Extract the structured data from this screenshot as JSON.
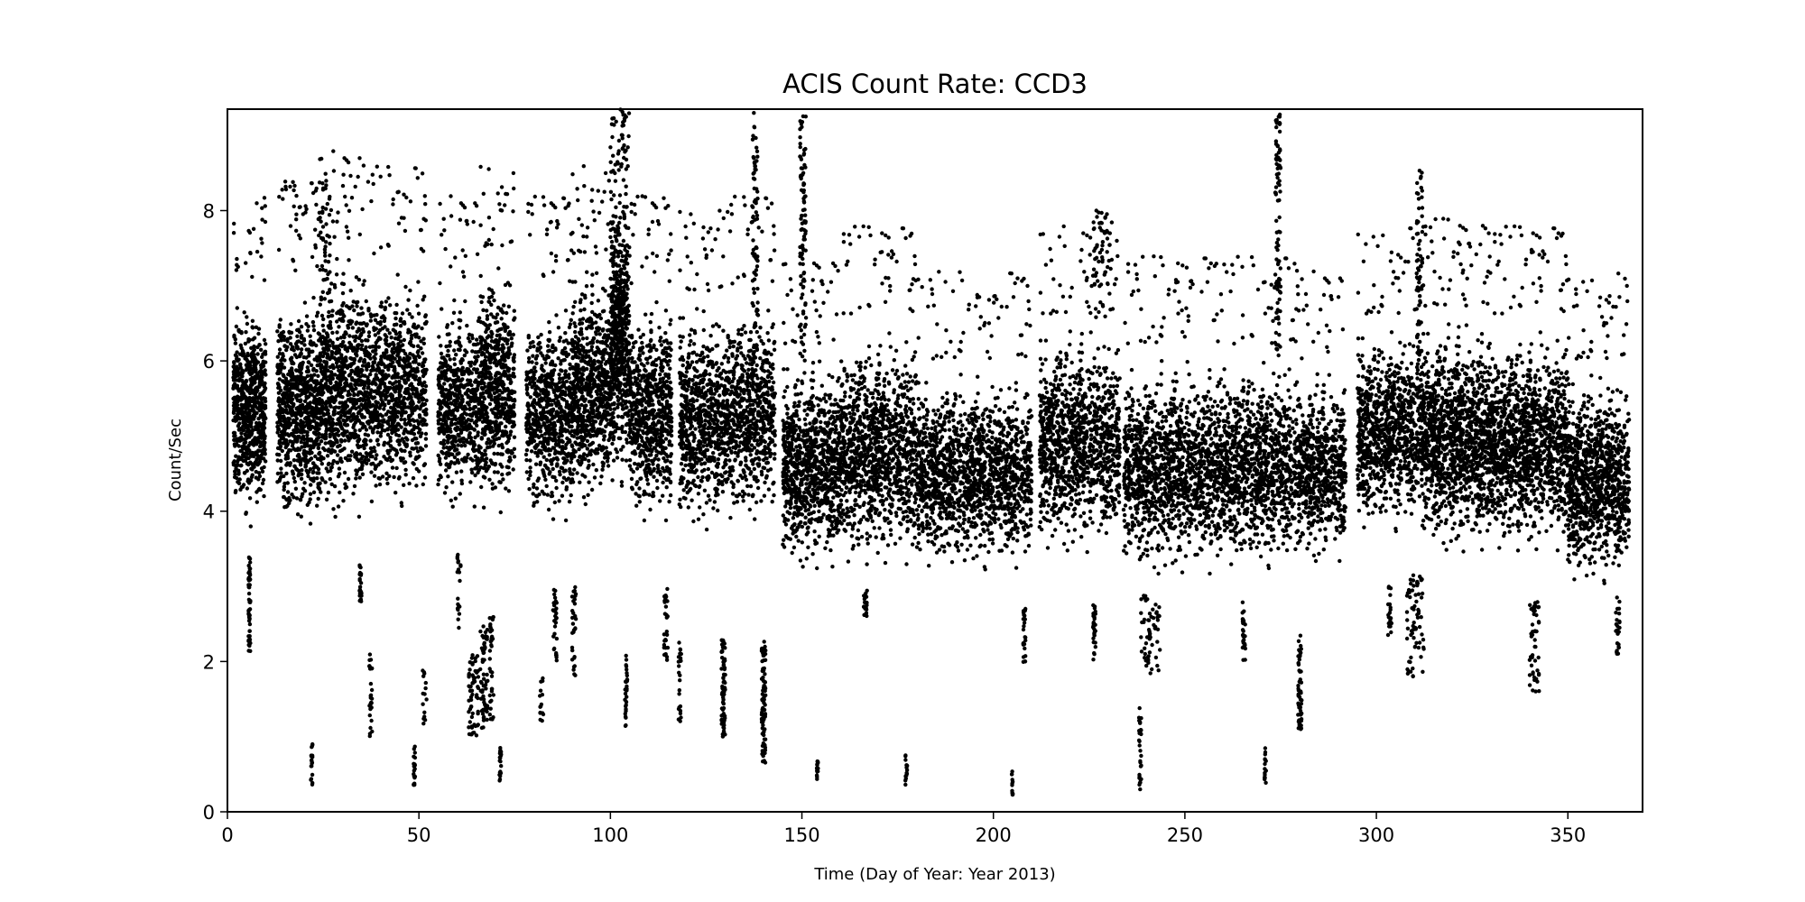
{
  "chart_data": {
    "type": "scatter",
    "title": "ACIS Count Rate: CCD3",
    "xlabel": "Time (Day of Year: Year 2013)",
    "ylabel": "Count/Sec",
    "xlim": [
      0,
      369.5
    ],
    "ylim": [
      0,
      9.35
    ],
    "xticks": [
      0,
      50,
      100,
      150,
      200,
      250,
      300,
      350
    ],
    "yticks": [
      0,
      2,
      4,
      6,
      8
    ],
    "grid": false,
    "legend": "none",
    "marker_color": "#000000",
    "note_format": "observation groups: [day_start, day_end, count_rate_low, count_rate_high, point_count]",
    "main_bands": [
      [
        1.5,
        10,
        3.7,
        7.0,
        700
      ],
      [
        13,
        24,
        3.5,
        7.2,
        800
      ],
      [
        24,
        36,
        3.6,
        7.6,
        800
      ],
      [
        36,
        52,
        3.8,
        7.4,
        900
      ],
      [
        55,
        66,
        3.8,
        7.0,
        600
      ],
      [
        66,
        75,
        3.7,
        7.5,
        600
      ],
      [
        78,
        90,
        3.6,
        7.0,
        700
      ],
      [
        90,
        100,
        3.8,
        7.4,
        700
      ],
      [
        100,
        105,
        4.0,
        8.5,
        500
      ],
      [
        105,
        116,
        3.6,
        7.0,
        700
      ],
      [
        118,
        130,
        3.5,
        6.9,
        700
      ],
      [
        130,
        143,
        3.6,
        7.0,
        700
      ],
      [
        145,
        160,
        3.0,
        6.2,
        900
      ],
      [
        160,
        180,
        3.0,
        6.6,
        1100
      ],
      [
        180,
        210,
        3.0,
        6.0,
        1500
      ],
      [
        212,
        233,
        3.2,
        6.6,
        1100
      ],
      [
        234,
        260,
        2.9,
        6.2,
        1300
      ],
      [
        260,
        280,
        3.0,
        6.2,
        1000
      ],
      [
        280,
        292,
        3.1,
        6.0,
        600
      ],
      [
        295,
        312,
        3.5,
        6.6,
        900
      ],
      [
        312,
        330,
        3.2,
        6.7,
        1200
      ],
      [
        330,
        350,
        3.2,
        6.6,
        1200
      ],
      [
        350,
        366,
        2.8,
        6.0,
        1000
      ]
    ],
    "flares": [
      [
        100,
        104.5,
        6.0,
        9.3,
        150
      ],
      [
        137,
        138.5,
        6.0,
        9.3,
        80
      ],
      [
        149.5,
        151,
        6.0,
        9.3,
        90
      ],
      [
        273.5,
        275,
        6.0,
        9.3,
        90
      ],
      [
        310.5,
        312,
        5.5,
        8.6,
        80
      ],
      [
        226,
        231,
        6.5,
        8.0,
        60
      ],
      [
        24,
        27,
        6.8,
        8.4,
        40
      ]
    ],
    "low_groups": [
      [
        5.5,
        6,
        2.1,
        3.4,
        60
      ],
      [
        21.8,
        22.2,
        0.35,
        0.9,
        20
      ],
      [
        34.5,
        35,
        2.8,
        3.3,
        25
      ],
      [
        37,
        37.8,
        1.0,
        2.1,
        30
      ],
      [
        48.6,
        49,
        0.35,
        0.9,
        20
      ],
      [
        51,
        52,
        1.1,
        1.9,
        15
      ],
      [
        60,
        61,
        2.4,
        3.5,
        20
      ],
      [
        63,
        65.5,
        1.0,
        2.1,
        60
      ],
      [
        66,
        68,
        1.1,
        2.5,
        60
      ],
      [
        68.5,
        69.5,
        1.2,
        2.6,
        35
      ],
      [
        71,
        71.5,
        0.4,
        0.85,
        20
      ],
      [
        81.5,
        82.5,
        1.2,
        1.8,
        15
      ],
      [
        85,
        86,
        2.0,
        3.0,
        30
      ],
      [
        90,
        91,
        1.8,
        3.0,
        30
      ],
      [
        103.8,
        104.4,
        1.1,
        2.1,
        30
      ],
      [
        114,
        115,
        2.0,
        3.0,
        30
      ],
      [
        117.8,
        118.5,
        1.2,
        2.3,
        25
      ],
      [
        129,
        130,
        1.0,
        2.3,
        70
      ],
      [
        139.5,
        140.5,
        0.65,
        2.3,
        90
      ],
      [
        153.8,
        154.2,
        0.4,
        0.7,
        15
      ],
      [
        166,
        167,
        2.6,
        3.0,
        20
      ],
      [
        177,
        177.5,
        0.35,
        0.8,
        15
      ],
      [
        204.8,
        205.2,
        0.2,
        0.55,
        12
      ],
      [
        207.8,
        208.4,
        1.9,
        2.8,
        25
      ],
      [
        226,
        226.8,
        1.8,
        2.8,
        30
      ],
      [
        238,
        238.6,
        0.25,
        1.4,
        30
      ],
      [
        238.5,
        243.5,
        1.8,
        2.9,
        60
      ],
      [
        265,
        265.8,
        1.9,
        2.8,
        30
      ],
      [
        270.8,
        271.2,
        0.35,
        0.85,
        15
      ],
      [
        279.5,
        280.5,
        1.1,
        2.4,
        60
      ],
      [
        303,
        304,
        2.3,
        3.0,
        20
      ],
      [
        308,
        312.5,
        1.8,
        3.2,
        70
      ],
      [
        340,
        342.5,
        1.6,
        2.8,
        50
      ],
      [
        362.5,
        363.5,
        2.1,
        2.9,
        25
      ]
    ]
  }
}
